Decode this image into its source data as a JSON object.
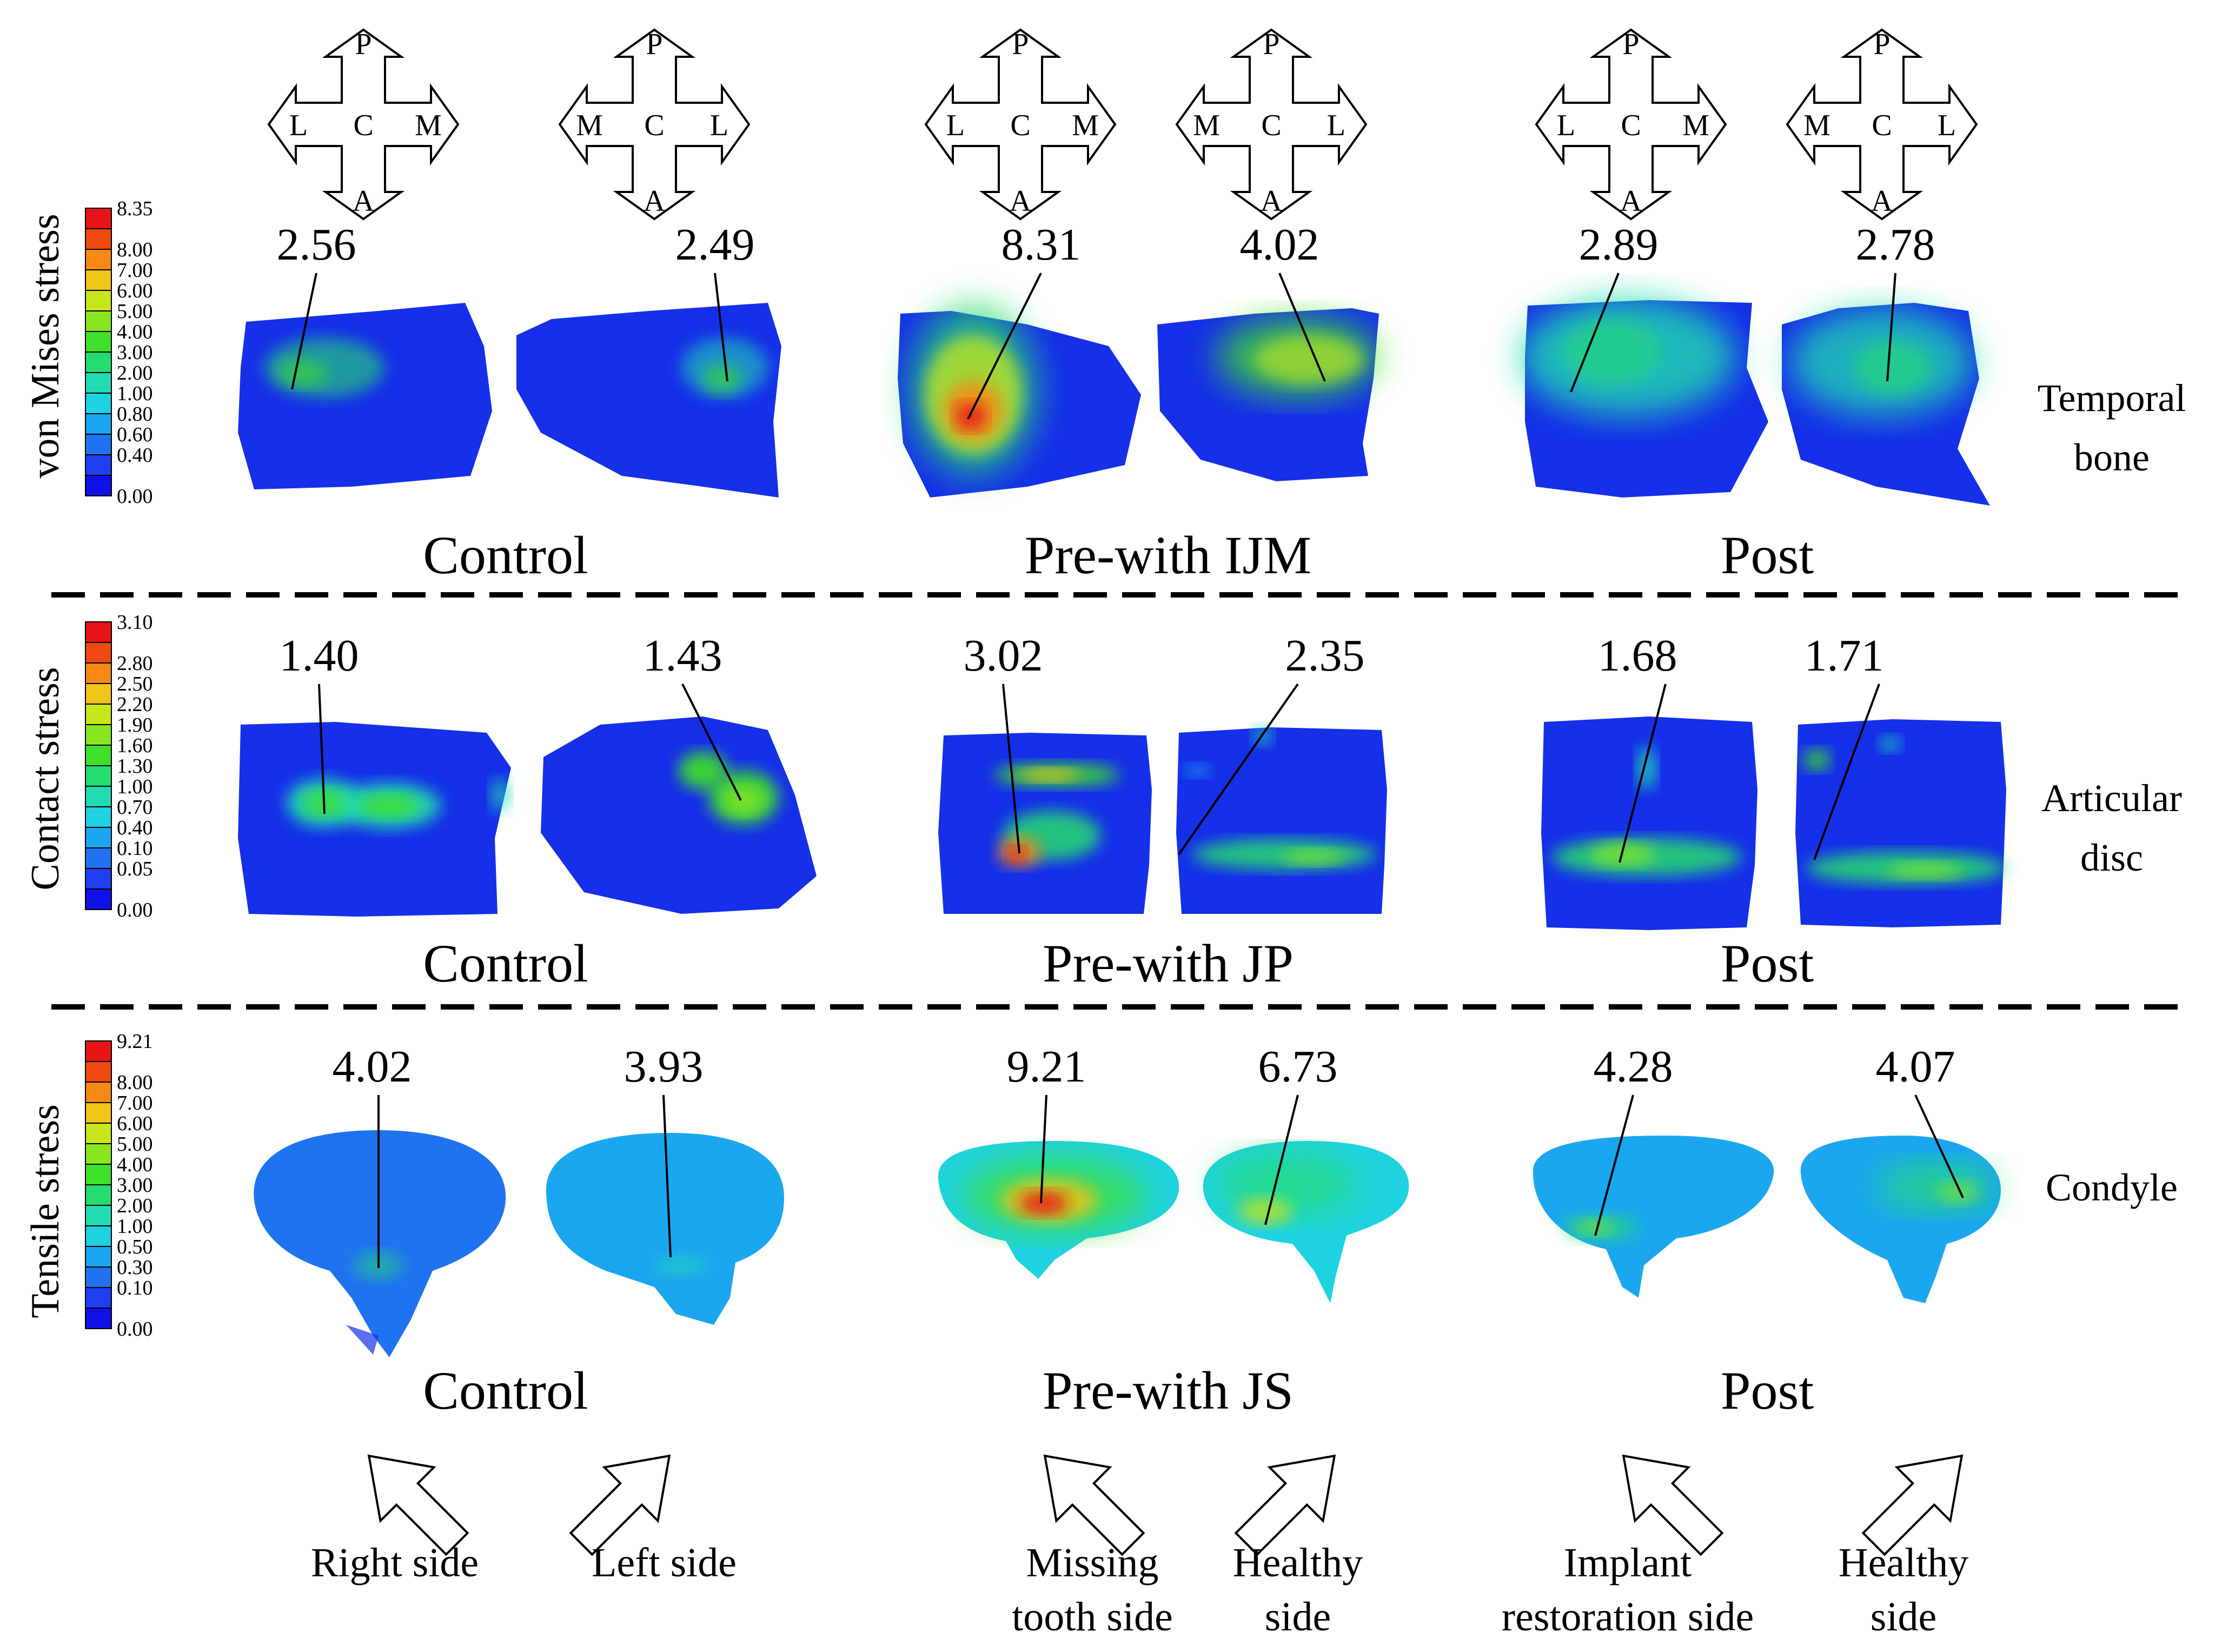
{
  "colors": {
    "background": "#ffffff",
    "scale": [
      "#1010e6",
      "#1e3ff2",
      "#1f73f0",
      "#1ba7f0",
      "#1fd2e0",
      "#20dcb0",
      "#25dc70",
      "#3fe12c",
      "#8ae620",
      "#c8e61c",
      "#f0c419",
      "#f58a14",
      "#f04a10",
      "#e61414"
    ],
    "tissue_base": "#1530e8"
  },
  "rows": [
    {
      "id": "temporal",
      "measure_label": "von Mises stress",
      "scale_ticks": [
        "8.35",
        "8.00",
        "7.00",
        "6.00",
        "5.00",
        "4.00",
        "3.00",
        "2.00",
        "1.00",
        "0.80",
        "0.60",
        "0.40",
        "0.00"
      ],
      "tissue_label_lines": [
        "Temporal",
        "bone"
      ],
      "groups": [
        {
          "label": "Control",
          "left_value": "2.56",
          "right_value": "2.49"
        },
        {
          "label": "Pre-with IJM",
          "left_value": "8.31",
          "right_value": "4.02"
        },
        {
          "label": "Post",
          "left_value": "2.89",
          "right_value": "2.78"
        }
      ]
    },
    {
      "id": "disc",
      "measure_label": "Contact stress",
      "scale_ticks": [
        "3.10",
        "2.80",
        "2.50",
        "2.20",
        "1.90",
        "1.60",
        "1.30",
        "1.00",
        "0.70",
        "0.40",
        "0.10",
        "0.05",
        "0.00"
      ],
      "tissue_label_lines": [
        "Articular",
        "disc"
      ],
      "groups": [
        {
          "label": "Control",
          "left_value": "1.40",
          "right_value": "1.43"
        },
        {
          "label": "Pre-with JP",
          "left_value": "3.02",
          "right_value": "2.35"
        },
        {
          "label": "Post",
          "left_value": "1.68",
          "right_value": "1.71"
        }
      ]
    },
    {
      "id": "condyle",
      "measure_label": "Tensile stress",
      "scale_ticks": [
        "9.21",
        "8.00",
        "7.00",
        "6.00",
        "5.00",
        "4.00",
        "3.00",
        "2.00",
        "1.00",
        "0.50",
        "0.30",
        "0.10",
        "0.00"
      ],
      "tissue_label_lines": [
        "Condyle"
      ],
      "groups": [
        {
          "label": "Control",
          "left_value": "4.02",
          "right_value": "3.93"
        },
        {
          "label": "Pre-with JS",
          "left_value": "9.21",
          "right_value": "6.73"
        },
        {
          "label": "Post",
          "left_value": "4.28",
          "right_value": "4.07"
        }
      ]
    }
  ],
  "compass": {
    "top": "P",
    "center": "C",
    "bottom": "A",
    "orientations": [
      [
        "L",
        "M"
      ],
      [
        "M",
        "L"
      ],
      [
        "L",
        "M"
      ],
      [
        "M",
        "L"
      ],
      [
        "L",
        "M"
      ],
      [
        "M",
        "L"
      ]
    ]
  },
  "side_labels": [
    [
      "Right side"
    ],
    [
      "Left side"
    ],
    [
      "Missing",
      "tooth side"
    ],
    [
      "Healthy",
      "side"
    ],
    [
      "Implant",
      "restoration side"
    ],
    [
      "Healthy",
      "side"
    ]
  ]
}
